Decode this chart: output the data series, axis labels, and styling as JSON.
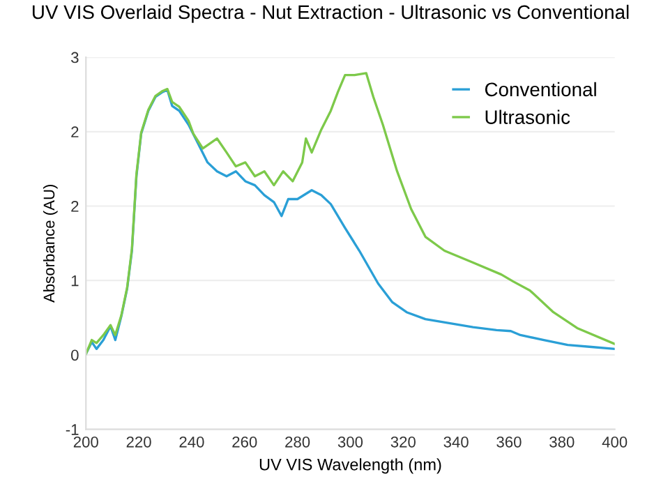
{
  "chart_data": {
    "type": "line",
    "title": "UV VIS Overlaid Spectra - Nut Extraction - Ultrasonic vs Conventional",
    "xlabel": "UV VIS Wavelength (nm)",
    "ylabel": "Absorbance (AU)",
    "xlim": [
      200,
      400
    ],
    "xticks": [
      200,
      220,
      240,
      260,
      280,
      300,
      320,
      340,
      360,
      380,
      400
    ],
    "ylim": [
      -0.75,
      3
    ],
    "yticks": [
      {
        "value": -0.75,
        "label": "-1"
      },
      {
        "value": 0,
        "label": "0"
      },
      {
        "value": 0.75,
        "label": "1"
      },
      {
        "value": 1.5,
        "label": "2"
      },
      {
        "value": 2.25,
        "label": "2"
      },
      {
        "value": 3,
        "label": "3"
      }
    ],
    "grid": "y",
    "legend": "top right",
    "line_style": "solid",
    "marker": "none",
    "series": [
      {
        "name": "Conventional",
        "color": "#2a9fd6",
        "x": [
          200,
          202.2,
          204,
          206.6,
          209.3,
          211.1,
          213.4,
          215.6,
          217.4,
          219.1,
          220.9,
          223.6,
          226.3,
          229,
          230.8,
          232.6,
          235.3,
          238.8,
          242.4,
          246,
          249.6,
          253.2,
          256.7,
          260.3,
          263.9,
          267.5,
          271.1,
          274,
          276.5,
          280,
          285.4,
          289,
          292.6,
          298,
          303.4,
          310.5,
          315.9,
          321.3,
          328.4,
          337.4,
          346.4,
          355.3,
          360.7,
          364.3,
          373.2,
          382.2,
          391.2,
          400
        ],
        "values": [
          0.01,
          0.13,
          0.06,
          0.15,
          0.29,
          0.15,
          0.39,
          0.67,
          1.05,
          1.8,
          2.23,
          2.46,
          2.6,
          2.65,
          2.67,
          2.51,
          2.46,
          2.32,
          2.13,
          1.94,
          1.85,
          1.8,
          1.85,
          1.75,
          1.71,
          1.61,
          1.54,
          1.4,
          1.57,
          1.57,
          1.66,
          1.61,
          1.52,
          1.28,
          1.05,
          0.72,
          0.53,
          0.43,
          0.36,
          0.32,
          0.28,
          0.25,
          0.24,
          0.2,
          0.15,
          0.1,
          0.08,
          0.06
        ]
      },
      {
        "name": "Ultrasonic",
        "color": "#7dc94a",
        "x": [
          200,
          202.2,
          204,
          206.6,
          209.3,
          211.1,
          213.4,
          215.6,
          217.4,
          219.1,
          220.9,
          223.6,
          226.3,
          229,
          230.8,
          232.6,
          235.3,
          238.8,
          240.6,
          244.2,
          249.6,
          253.2,
          256.7,
          260.3,
          263.9,
          267.5,
          271.1,
          274.6,
          278.2,
          281.8,
          283.2,
          285.4,
          289,
          292.6,
          295.3,
          298,
          301.6,
          306,
          308.7,
          312.3,
          317.7,
          323,
          328.4,
          335.6,
          346.4,
          357.1,
          361.6,
          367.9,
          376.8,
          385.8,
          400
        ],
        "values": [
          0.01,
          0.15,
          0.12,
          0.2,
          0.3,
          0.2,
          0.4,
          0.68,
          1.07,
          1.82,
          2.24,
          2.47,
          2.61,
          2.66,
          2.68,
          2.55,
          2.5,
          2.36,
          2.23,
          2.08,
          2.18,
          2.04,
          1.9,
          1.94,
          1.8,
          1.85,
          1.71,
          1.85,
          1.75,
          1.94,
          2.18,
          2.04,
          2.27,
          2.46,
          2.65,
          2.82,
          2.82,
          2.84,
          2.6,
          2.32,
          1.85,
          1.47,
          1.19,
          1.05,
          0.93,
          0.81,
          0.74,
          0.65,
          0.43,
          0.27,
          0.11
        ]
      }
    ]
  }
}
